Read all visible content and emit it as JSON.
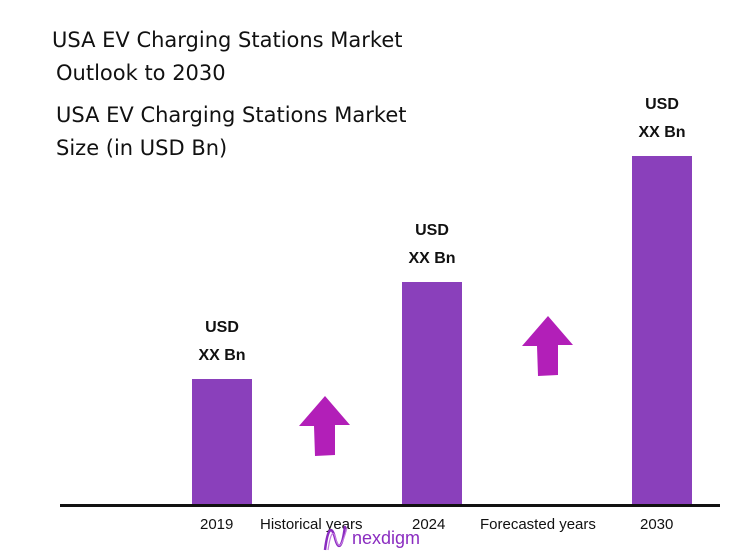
{
  "titles": {
    "main_line1": "USA EV Charging Stations Market",
    "main_line2": "Outlook to 2030",
    "sub_line1": "USA EV Charging Stations Market",
    "sub_line2": "Size (in USD Bn)"
  },
  "chart_data": {
    "type": "bar",
    "categories": [
      "2019",
      "2024",
      "2030"
    ],
    "values": [
      36,
      64,
      100
    ],
    "value_note_unit": "relative bar height (2030 = 100); actual values not printed",
    "data_labels": [
      {
        "line1": "USD",
        "line2": "XX Bn"
      },
      {
        "line1": "USD",
        "line2": "XX Bn"
      },
      {
        "line1": "USD",
        "line2": "XX Bn"
      }
    ],
    "period_labels": [
      "Historical years",
      "Forecasted years"
    ],
    "ylim": [
      0,
      100
    ],
    "grid": false,
    "colors": {
      "bar": "#8a40bb",
      "arrow": "#b21fb8",
      "axis": "#111111"
    }
  },
  "logo": {
    "text": "nexdigm"
  }
}
